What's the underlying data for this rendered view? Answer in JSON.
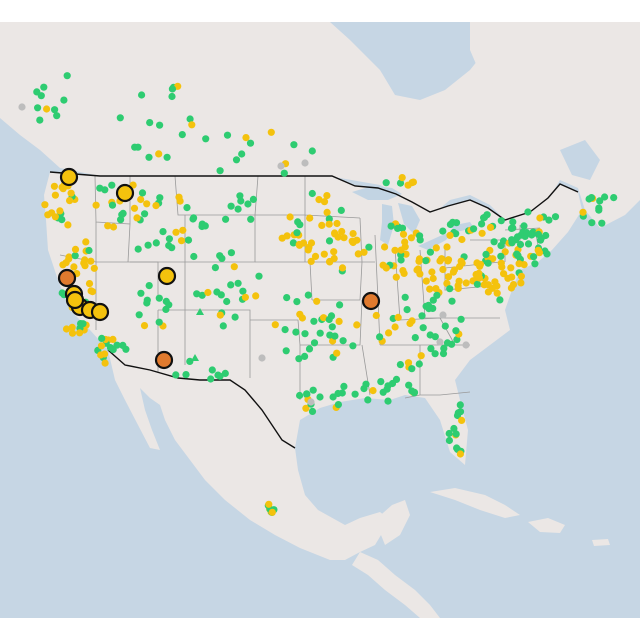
{
  "map": {
    "region": "North America",
    "basemap_style": "light",
    "colors": {
      "ocean": "#c6d6e4",
      "land": "#ebe7e5",
      "great_lakes": "#c2d4e3",
      "us_border": "#111111",
      "state_border": "#9a9a9a"
    }
  },
  "legend_categories": [
    {
      "key": "good",
      "color": "#2ecc71"
    },
    {
      "key": "moderate",
      "color": "#f4c20d"
    },
    {
      "key": "unhealthy_sensitive",
      "color": "#ff9800"
    },
    {
      "key": "unhealthy",
      "color": "#e07a2e"
    },
    {
      "key": "no_data",
      "color": "#bdbdbd"
    }
  ],
  "large_markers": [
    {
      "category": "moderate"
    },
    {
      "category": "moderate"
    },
    {
      "category": "moderate"
    },
    {
      "category": "moderate"
    },
    {
      "category": "moderate"
    },
    {
      "category": "moderate"
    },
    {
      "category": "moderate"
    },
    {
      "category": "moderate"
    },
    {
      "category": "unhealthy"
    },
    {
      "category": "unhealthy"
    },
    {
      "category": "unhealthy"
    }
  ],
  "triangle_markers_count": 2
}
